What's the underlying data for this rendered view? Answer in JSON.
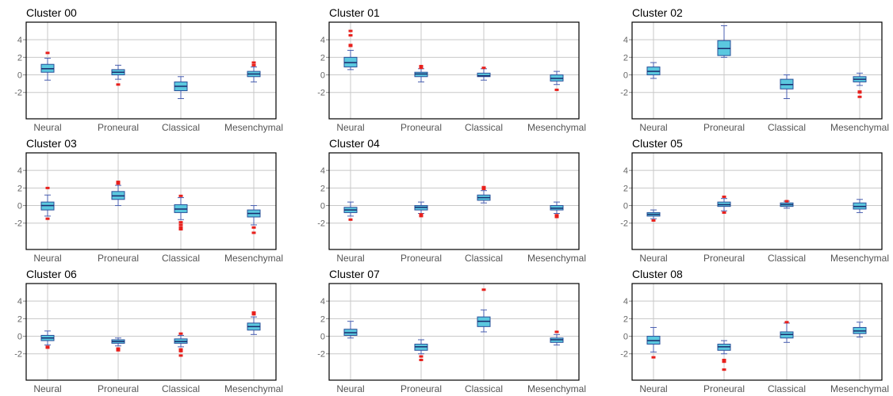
{
  "colors": {
    "box_fill": "#5bc8df",
    "box_edge": "#2a4f9a",
    "median": "#1a2a6c",
    "whisker": "#4a5fb0",
    "outlier": "#e8201c",
    "grid": "#c8c8c8",
    "frame": "#000000"
  },
  "chart_data": [
    {
      "title": "Cluster 00",
      "type": "box",
      "categories": [
        "Neural",
        "Proneural",
        "Classical",
        "Mesenchymal"
      ],
      "ylim": [
        -5,
        6
      ],
      "yticks": [
        -2,
        0,
        2,
        4
      ],
      "grid": true,
      "boxes": [
        {
          "min": -0.6,
          "q1": 0.3,
          "median": 0.7,
          "q3": 1.2,
          "max": 1.9,
          "outliers": [
            2.5
          ]
        },
        {
          "min": -0.5,
          "q1": 0.0,
          "median": 0.3,
          "q3": 0.6,
          "max": 1.1,
          "outliers": [
            -1.1
          ]
        },
        {
          "min": -2.7,
          "q1": -1.8,
          "median": -1.3,
          "q3": -0.8,
          "max": -0.2,
          "outliers": []
        },
        {
          "min": -0.8,
          "q1": -0.2,
          "median": 0.1,
          "q3": 0.4,
          "max": 0.9,
          "outliers": [
            1.1,
            1.4
          ]
        }
      ]
    },
    {
      "title": "Cluster 01",
      "type": "box",
      "categories": [
        "Neural",
        "Proneural",
        "Classical",
        "Mesenchymal"
      ],
      "ylim": [
        -5,
        6
      ],
      "yticks": [
        -2,
        0,
        2,
        4
      ],
      "grid": true,
      "boxes": [
        {
          "min": 0.6,
          "q1": 0.9,
          "median": 1.4,
          "q3": 2.0,
          "max": 2.8,
          "outliers": [
            3.3,
            3.4,
            4.5,
            5.0
          ]
        },
        {
          "min": -0.8,
          "q1": -0.2,
          "median": 0.1,
          "q3": 0.3,
          "max": 0.7,
          "outliers": [
            0.8,
            1.0
          ]
        },
        {
          "min": -0.6,
          "q1": -0.2,
          "median": -0.1,
          "q3": 0.2,
          "max": 0.7,
          "outliers": [
            0.8
          ]
        },
        {
          "min": -1.1,
          "q1": -0.7,
          "median": -0.4,
          "q3": 0.0,
          "max": 0.4,
          "outliers": [
            -1.7
          ]
        }
      ]
    },
    {
      "title": "Cluster 02",
      "type": "box",
      "categories": [
        "Neural",
        "Proneural",
        "Classical",
        "Mesenchymal"
      ],
      "ylim": [
        -5,
        6
      ],
      "yticks": [
        -2,
        0,
        2,
        4
      ],
      "grid": true,
      "boxes": [
        {
          "min": -0.4,
          "q1": 0.0,
          "median": 0.4,
          "q3": 0.9,
          "max": 1.4,
          "outliers": []
        },
        {
          "min": 2.0,
          "q1": 2.2,
          "median": 3.0,
          "q3": 3.9,
          "max": 5.6,
          "outliers": []
        },
        {
          "min": -2.7,
          "q1": -1.6,
          "median": -1.1,
          "q3": -0.5,
          "max": 0.0,
          "outliers": []
        },
        {
          "min": -1.2,
          "q1": -0.8,
          "median": -0.5,
          "q3": -0.2,
          "max": 0.2,
          "outliers": [
            -1.9,
            -2.0,
            -2.5
          ]
        }
      ]
    },
    {
      "title": "Cluster 03",
      "type": "box",
      "categories": [
        "Neural",
        "Proneural",
        "Classical",
        "Mesenchymal"
      ],
      "ylim": [
        -5,
        6
      ],
      "yticks": [
        -2,
        0,
        2,
        4
      ],
      "grid": true,
      "boxes": [
        {
          "min": -1.2,
          "q1": -0.5,
          "median": 0.0,
          "q3": 0.4,
          "max": 1.2,
          "outliers": [
            -1.5,
            2.0
          ]
        },
        {
          "min": 0.0,
          "q1": 0.7,
          "median": 1.1,
          "q3": 1.6,
          "max": 2.3,
          "outliers": [
            2.5,
            2.7
          ]
        },
        {
          "min": -1.6,
          "q1": -0.8,
          "median": -0.4,
          "q3": 0.1,
          "max": 0.9,
          "outliers": [
            1.1,
            -1.9,
            -2.2,
            -2.5,
            -2.7
          ]
        },
        {
          "min": -2.2,
          "q1": -1.3,
          "median": -0.9,
          "q3": -0.5,
          "max": 0.0,
          "outliers": [
            -2.5,
            -3.1
          ]
        }
      ]
    },
    {
      "title": "Cluster 04",
      "type": "box",
      "categories": [
        "Neural",
        "Proneural",
        "Classical",
        "Mesenchymal"
      ],
      "ylim": [
        -5,
        6
      ],
      "yticks": [
        -2,
        0,
        2,
        4
      ],
      "grid": true,
      "boxes": [
        {
          "min": -1.2,
          "q1": -0.8,
          "median": -0.5,
          "q3": -0.2,
          "max": 0.4,
          "outliers": [
            -1.6
          ]
        },
        {
          "min": -0.9,
          "q1": -0.5,
          "median": -0.2,
          "q3": 0.0,
          "max": 0.4,
          "outliers": [
            -1.0,
            -1.2
          ]
        },
        {
          "min": 0.3,
          "q1": 0.6,
          "median": 0.9,
          "q3": 1.2,
          "max": 1.7,
          "outliers": [
            1.9,
            2.1
          ]
        },
        {
          "min": -0.9,
          "q1": -0.5,
          "median": -0.3,
          "q3": 0.0,
          "max": 0.4,
          "outliers": [
            -1.1,
            -1.3
          ]
        }
      ]
    },
    {
      "title": "Cluster 05",
      "type": "box",
      "categories": [
        "Neural",
        "Proneural",
        "Classical",
        "Mesenchymal"
      ],
      "ylim": [
        -5,
        6
      ],
      "yticks": [
        -2,
        0,
        2,
        4
      ],
      "grid": true,
      "boxes": [
        {
          "min": -1.5,
          "q1": -1.2,
          "median": -1.0,
          "q3": -0.8,
          "max": -0.5,
          "outliers": [
            -1.7
          ]
        },
        {
          "min": -0.6,
          "q1": -0.1,
          "median": 0.1,
          "q3": 0.4,
          "max": 0.8,
          "outliers": [
            1.0,
            -0.8
          ]
        },
        {
          "min": -0.3,
          "q1": -0.1,
          "median": 0.1,
          "q3": 0.3,
          "max": 0.5,
          "outliers": [
            0.5
          ]
        },
        {
          "min": -0.8,
          "q1": -0.4,
          "median": -0.1,
          "q3": 0.3,
          "max": 0.7,
          "outliers": []
        }
      ]
    },
    {
      "title": "Cluster 06",
      "type": "box",
      "categories": [
        "Neural",
        "Proneural",
        "Classical",
        "Mesenchymal"
      ],
      "ylim": [
        -5,
        6
      ],
      "yticks": [
        -2,
        0,
        2,
        4
      ],
      "grid": true,
      "boxes": [
        {
          "min": -1.0,
          "q1": -0.5,
          "median": -0.2,
          "q3": 0.1,
          "max": 0.6,
          "outliers": [
            -1.2,
            -1.3
          ]
        },
        {
          "min": -1.1,
          "q1": -0.8,
          "median": -0.6,
          "q3": -0.4,
          "max": -0.2,
          "outliers": [
            -1.4,
            -1.6
          ]
        },
        {
          "min": -1.2,
          "q1": -0.8,
          "median": -0.6,
          "q3": -0.3,
          "max": 0.1,
          "outliers": [
            0.3,
            -1.5,
            -1.7,
            -2.2
          ]
        },
        {
          "min": 0.2,
          "q1": 0.7,
          "median": 1.1,
          "q3": 1.5,
          "max": 2.2,
          "outliers": [
            2.5,
            2.7
          ]
        }
      ]
    },
    {
      "title": "Cluster 07",
      "type": "box",
      "categories": [
        "Neural",
        "Proneural",
        "Classical",
        "Mesenchymal"
      ],
      "ylim": [
        -5,
        6
      ],
      "yticks": [
        -2,
        0,
        2,
        4
      ],
      "grid": true,
      "boxes": [
        {
          "min": -0.2,
          "q1": 0.1,
          "median": 0.4,
          "q3": 0.8,
          "max": 1.7,
          "outliers": []
        },
        {
          "min": -2.0,
          "q1": -1.6,
          "median": -1.2,
          "q3": -0.9,
          "max": -0.4,
          "outliers": [
            -2.3,
            -2.7
          ]
        },
        {
          "min": 0.5,
          "q1": 1.1,
          "median": 1.7,
          "q3": 2.2,
          "max": 3.0,
          "outliers": [
            5.3
          ]
        },
        {
          "min": -1.0,
          "q1": -0.7,
          "median": -0.4,
          "q3": -0.2,
          "max": 0.2,
          "outliers": [
            0.5
          ]
        }
      ]
    },
    {
      "title": "Cluster 08",
      "type": "box",
      "categories": [
        "Neural",
        "Proneural",
        "Classical",
        "Mesenchymal"
      ],
      "ylim": [
        -5,
        6
      ],
      "yticks": [
        -2,
        0,
        2,
        4
      ],
      "grid": true,
      "boxes": [
        {
          "min": -1.8,
          "q1": -0.9,
          "median": -0.5,
          "q3": 0.0,
          "max": 1.0,
          "outliers": [
            -2.4
          ]
        },
        {
          "min": -2.0,
          "q1": -1.6,
          "median": -1.2,
          "q3": -0.9,
          "max": -0.5,
          "outliers": [
            -2.7,
            -2.9,
            -3.8
          ]
        },
        {
          "min": -0.7,
          "q1": -0.2,
          "median": 0.2,
          "q3": 0.5,
          "max": 1.5,
          "outliers": [
            1.6
          ]
        },
        {
          "min": -0.1,
          "q1": 0.3,
          "median": 0.6,
          "q3": 1.0,
          "max": 1.6,
          "outliers": []
        }
      ]
    }
  ]
}
